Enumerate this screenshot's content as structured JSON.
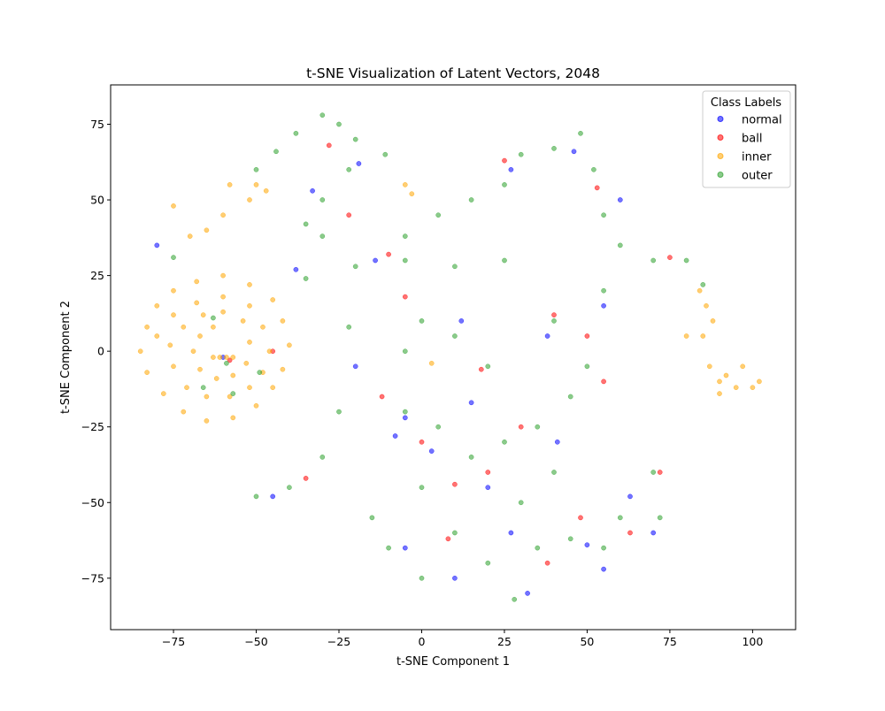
{
  "chart_data": {
    "type": "scatter",
    "title": "t-SNE Visualization of Latent Vectors, 2048",
    "xlabel": "t-SNE Component 1",
    "ylabel": "t-SNE Component 2",
    "xlim": [
      -94,
      113
    ],
    "ylim": [
      -92,
      88
    ],
    "xticks": [
      -75,
      -50,
      -25,
      0,
      25,
      50,
      75,
      100
    ],
    "yticks": [
      -75,
      -50,
      -25,
      0,
      25,
      50,
      75
    ],
    "xtick_labels": [
      "−75",
      "−50",
      "−25",
      "0",
      "25",
      "50",
      "75",
      "100"
    ],
    "ytick_labels": [
      "−75",
      "−50",
      "−25",
      "0",
      "25",
      "50",
      "75"
    ],
    "grid": false,
    "legend": {
      "title": "Class Labels",
      "placement": "top-right"
    },
    "series": [
      {
        "name": "normal",
        "color": "#0000ff",
        "points": [
          [
            -33,
            53
          ],
          [
            -19,
            62
          ],
          [
            -14,
            30
          ],
          [
            -5,
            -22
          ],
          [
            3,
            -33
          ],
          [
            -5,
            -65
          ],
          [
            10,
            -75
          ],
          [
            20,
            -45
          ],
          [
            27,
            -60
          ],
          [
            32,
            -80
          ],
          [
            41,
            -30
          ],
          [
            50,
            -64
          ],
          [
            55,
            15
          ],
          [
            63,
            -48
          ],
          [
            70,
            -60
          ],
          [
            55,
            -72
          ],
          [
            27,
            60
          ],
          [
            -45,
            -48
          ],
          [
            -80,
            35
          ],
          [
            -60,
            -2
          ],
          [
            12,
            10
          ],
          [
            -20,
            -5
          ],
          [
            38,
            5
          ],
          [
            60,
            50
          ],
          [
            46,
            66
          ],
          [
            -38,
            27
          ],
          [
            -8,
            -28
          ],
          [
            15,
            -17
          ]
        ]
      },
      {
        "name": "ball",
        "color": "#ff0000",
        "points": [
          [
            -28,
            68
          ],
          [
            -22,
            45
          ],
          [
            -10,
            32
          ],
          [
            0,
            -30
          ],
          [
            8,
            -62
          ],
          [
            20,
            -40
          ],
          [
            30,
            -25
          ],
          [
            38,
            -70
          ],
          [
            48,
            -55
          ],
          [
            55,
            -10
          ],
          [
            63,
            -60
          ],
          [
            72,
            -40
          ],
          [
            25,
            63
          ],
          [
            50,
            5
          ],
          [
            -35,
            -42
          ],
          [
            -58,
            -3
          ],
          [
            -45,
            0
          ],
          [
            10,
            -44
          ],
          [
            18,
            -6
          ],
          [
            40,
            12
          ],
          [
            53,
            54
          ],
          [
            75,
            31
          ],
          [
            -12,
            -15
          ],
          [
            -5,
            18
          ]
        ]
      },
      {
        "name": "inner",
        "color": "#ffa500",
        "points": [
          [
            -58,
            55
          ],
          [
            -52,
            50
          ],
          [
            -50,
            55
          ],
          [
            -47,
            53
          ],
          [
            -60,
            45
          ],
          [
            -65,
            40
          ],
          [
            -70,
            38
          ],
          [
            -75,
            48
          ],
          [
            -5,
            55
          ],
          [
            -3,
            52
          ],
          [
            3,
            -4
          ],
          [
            87,
            -5
          ],
          [
            90,
            -10
          ],
          [
            92,
            -8
          ],
          [
            95,
            -12
          ],
          [
            100,
            -12
          ],
          [
            102,
            -10
          ],
          [
            85,
            5
          ],
          [
            88,
            10
          ],
          [
            86,
            15
          ],
          [
            84,
            20
          ],
          [
            80,
            5
          ],
          [
            90,
            -14
          ],
          [
            97,
            -5
          ],
          [
            -85,
            0
          ],
          [
            -83,
            8
          ],
          [
            -80,
            15
          ],
          [
            -75,
            20
          ],
          [
            -68,
            23
          ],
          [
            -60,
            25
          ],
          [
            -52,
            22
          ],
          [
            -45,
            17
          ],
          [
            -42,
            10
          ],
          [
            -40,
            2
          ],
          [
            -42,
            -6
          ],
          [
            -45,
            -12
          ],
          [
            -50,
            -18
          ],
          [
            -57,
            -22
          ],
          [
            -65,
            -23
          ],
          [
            -72,
            -20
          ],
          [
            -78,
            -14
          ],
          [
            -83,
            -7
          ],
          [
            -80,
            5
          ],
          [
            -75,
            12
          ],
          [
            -68,
            16
          ],
          [
            -60,
            18
          ],
          [
            -52,
            15
          ],
          [
            -48,
            8
          ],
          [
            -46,
            0
          ],
          [
            -48,
            -7
          ],
          [
            -52,
            -12
          ],
          [
            -58,
            -15
          ],
          [
            -65,
            -15
          ],
          [
            -71,
            -12
          ],
          [
            -75,
            -5
          ],
          [
            -76,
            2
          ],
          [
            -72,
            8
          ],
          [
            -66,
            12
          ],
          [
            -60,
            13
          ],
          [
            -54,
            10
          ],
          [
            -52,
            3
          ],
          [
            -53,
            -4
          ],
          [
            -57,
            -8
          ],
          [
            -62,
            -9
          ],
          [
            -67,
            -6
          ],
          [
            -69,
            0
          ],
          [
            -67,
            5
          ],
          [
            -63,
            8
          ],
          [
            -59,
            -2
          ],
          [
            -61,
            -2
          ],
          [
            -63,
            -2
          ],
          [
            -57,
            -2
          ]
        ]
      },
      {
        "name": "outer",
        "color": "#2ca02c",
        "points": [
          [
            -50,
            60
          ],
          [
            -44,
            66
          ],
          [
            -38,
            72
          ],
          [
            -30,
            78
          ],
          [
            -25,
            75
          ],
          [
            -20,
            70
          ],
          [
            -22,
            60
          ],
          [
            -30,
            50
          ],
          [
            -35,
            42
          ],
          [
            -30,
            38
          ],
          [
            -11,
            65
          ],
          [
            -5,
            38
          ],
          [
            5,
            45
          ],
          [
            15,
            50
          ],
          [
            25,
            55
          ],
          [
            30,
            65
          ],
          [
            40,
            67
          ],
          [
            48,
            72
          ],
          [
            52,
            60
          ],
          [
            55,
            45
          ],
          [
            60,
            35
          ],
          [
            70,
            30
          ],
          [
            80,
            30
          ],
          [
            85,
            22
          ],
          [
            -20,
            28
          ],
          [
            -35,
            24
          ],
          [
            -5,
            30
          ],
          [
            10,
            28
          ],
          [
            25,
            30
          ],
          [
            -22,
            8
          ],
          [
            -5,
            0
          ],
          [
            0,
            10
          ],
          [
            10,
            5
          ],
          [
            -25,
            -20
          ],
          [
            -30,
            -35
          ],
          [
            -40,
            -45
          ],
          [
            -50,
            -48
          ],
          [
            -5,
            -20
          ],
          [
            5,
            -25
          ],
          [
            15,
            -35
          ],
          [
            0,
            -45
          ],
          [
            -15,
            -55
          ],
          [
            -10,
            -65
          ],
          [
            0,
            -75
          ],
          [
            10,
            -60
          ],
          [
            20,
            -70
          ],
          [
            28,
            -82
          ],
          [
            35,
            -65
          ],
          [
            45,
            -62
          ],
          [
            55,
            -65
          ],
          [
            60,
            -55
          ],
          [
            70,
            -40
          ],
          [
            72,
            -55
          ],
          [
            25,
            -30
          ],
          [
            35,
            -25
          ],
          [
            45,
            -15
          ],
          [
            50,
            -5
          ],
          [
            40,
            -40
          ],
          [
            30,
            -50
          ],
          [
            55,
            20
          ],
          [
            40,
            10
          ],
          [
            20,
            -5
          ],
          [
            -75,
            31
          ],
          [
            -59,
            -4
          ],
          [
            -63,
            11
          ],
          [
            -57,
            -14
          ],
          [
            -66,
            -12
          ],
          [
            -49,
            -7
          ]
        ]
      }
    ]
  }
}
